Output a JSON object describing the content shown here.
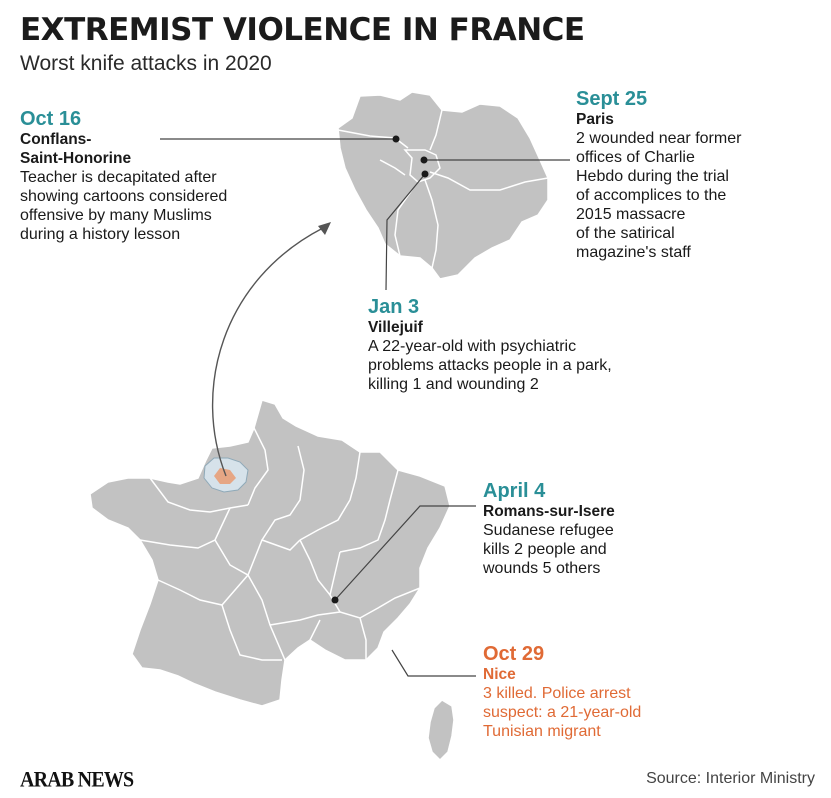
{
  "header": {
    "title": "EXTREMIST VIOLENCE IN FRANCE",
    "subtitle": "Worst knife attacks in 2020"
  },
  "colors": {
    "teal": "#2a8f97",
    "orange": "#e06a35",
    "map_gray": "#c2c2c2",
    "region_highlight": "#d6e2ea",
    "leader_line": "#444444"
  },
  "attacks": [
    {
      "date": "Oct 16",
      "place": "Conflans-\nSaint-Honorine",
      "description": "Teacher is decapitated after\nshowing cartoons considered\noffensive by many Muslims\nduring a history lesson",
      "color": "teal"
    },
    {
      "date": "Sept 25",
      "place": "Paris",
      "description": "2 wounded near former\noffices of Charlie\nHebdo during the trial\nof accomplices to the\n2015 massacre\n of  the satirical\nmagazine's staff",
      "color": "teal"
    },
    {
      "date": "Jan 3",
      "place": "Villejuif",
      "description": "A 22-year-old with psychiatric\nproblems attacks people in a park,\nkilling 1 and wounding 2",
      "color": "teal"
    },
    {
      "date": "April 4",
      "place": "Romans-sur-Isere",
      "description": "Sudanese refugee\nkills 2 people and\nwounds 5 others",
      "color": "teal"
    },
    {
      "date": "Oct 29",
      "place": "Nice",
      "description": "3 killed. Police arrest\nsuspect: a 21-year-old\nTunisian migrant",
      "color": "orange"
    }
  ],
  "footer": {
    "logo": "ARAB NEWS",
    "source": "Source: Interior Ministry"
  }
}
